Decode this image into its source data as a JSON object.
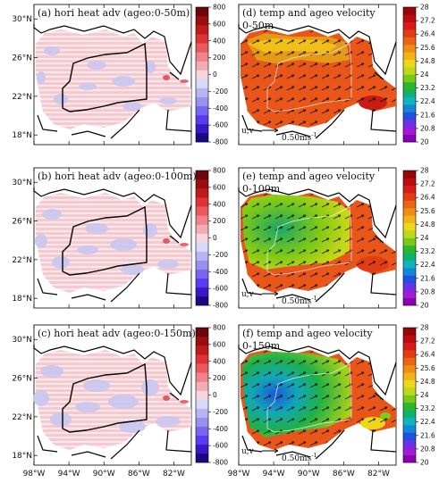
{
  "figure": {
    "x_axis": {
      "tick_labels": [
        "98°W",
        "94°W",
        "90°W",
        "86°W",
        "82°W"
      ],
      "values": [
        -98,
        -94,
        -90,
        -86,
        -82
      ],
      "range": [
        -98,
        -80
      ]
    },
    "y_axis": {
      "tick_labels": [
        "30°N",
        "26°N",
        "22°N",
        "18°N"
      ],
      "values": [
        30,
        26,
        22,
        18
      ],
      "range": [
        17,
        31.5
      ]
    },
    "left_panels": [
      {
        "title": "(a) hori heat adv (ageo:0-50m)"
      },
      {
        "title": "(b) hori heat adv (ageo:0-100m)"
      },
      {
        "title": "(c) hori heat adv (ageo:0-150m)"
      }
    ],
    "right_panels": [
      {
        "title": "(d) temp and ageo velocity",
        "subtitle": "0-50m"
      },
      {
        "title": "(e) temp and ageo velocity",
        "subtitle": "0-100m"
      },
      {
        "title": "(f) temp and ageo velocity",
        "subtitle": "0-150m"
      }
    ],
    "ref_vector": {
      "component_label": "u,v",
      "speed_label": "0.50ms",
      "unit_exponent": "-1"
    },
    "colorbar_left": {
      "tick_labels": [
        "800",
        "600",
        "400",
        "200",
        "0",
        "-200",
        "-400",
        "-600",
        "-800"
      ],
      "range": [
        -800,
        800
      ],
      "colors": [
        "#1a0a80",
        "#3a18c8",
        "#5a3cf0",
        "#7866f0",
        "#9a90f0",
        "#b8b4f4",
        "#d8d8fa",
        "#f6d6dc",
        "#f2acb4",
        "#ee8488",
        "#e85a5e",
        "#dc3436",
        "#c01a1a",
        "#9a0e10",
        "#6e0608"
      ]
    },
    "colorbar_right": {
      "tick_labels": [
        "28",
        "27.2",
        "26.4",
        "25.6",
        "24.8",
        "24",
        "23.2",
        "22.4",
        "21.6",
        "20.8",
        "20"
      ],
      "range": [
        20,
        28
      ],
      "colors": [
        "#8a00b4",
        "#a418d8",
        "#6a30ea",
        "#2050e0",
        "#1088d8",
        "#10b4c0",
        "#10b070",
        "#28b828",
        "#78c818",
        "#bcd818",
        "#ecd818",
        "#f0b418",
        "#f08c14",
        "#ea6414",
        "#e23c14",
        "#d61c14",
        "#bc0c0e",
        "#96060a"
      ]
    },
    "chart_data": {
      "type": "heatmap",
      "panels": [
        {
          "title": "(a) hori heat adv (ageo:0-50m)",
          "color_range": [
            -800,
            800
          ]
        },
        {
          "title": "(b) hori heat adv (ageo:0-100m)",
          "color_range": [
            -800,
            800
          ]
        },
        {
          "title": "(c) hori heat adv (ageo:0-150m)",
          "color_range": [
            -800,
            800
          ]
        },
        {
          "title": "(d) temp and ageo velocity",
          "depth": "0-50m",
          "color_range": [
            20,
            28
          ]
        },
        {
          "title": "(e) temp and ageo velocity",
          "depth": "0-100m",
          "color_range": [
            20,
            28
          ]
        },
        {
          "title": "(f) temp and ageo velocity",
          "depth": "0-150m",
          "color_range": [
            20,
            28
          ]
        }
      ],
      "xlim": [
        -98,
        -80
      ],
      "ylim": [
        17,
        31.5
      ],
      "ref_vector_speed": 0.5
    }
  }
}
